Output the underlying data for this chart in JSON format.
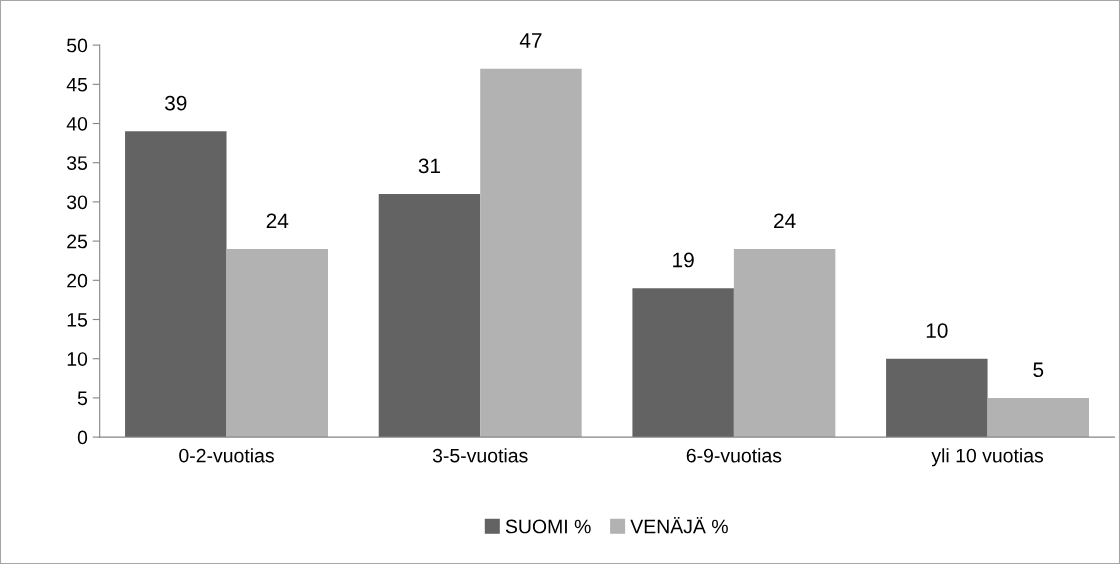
{
  "chart_data": {
    "type": "bar",
    "categories": [
      "0-2-vuotias",
      "3-5-vuotias",
      "6-9-vuotias",
      "yli 10 vuotias"
    ],
    "series": [
      {
        "name": "SUOMI %",
        "color": "#636363",
        "values": [
          39,
          31,
          19,
          10
        ]
      },
      {
        "name": "VENÄJÄ %",
        "color": "#b2b2b2",
        "values": [
          24,
          47,
          24,
          5
        ]
      }
    ],
    "ylim": [
      0,
      50
    ],
    "yticks": [
      0,
      5,
      10,
      15,
      20,
      25,
      30,
      35,
      40,
      45,
      50
    ],
    "data_labels": true,
    "grid": false,
    "legend": "bottom"
  }
}
